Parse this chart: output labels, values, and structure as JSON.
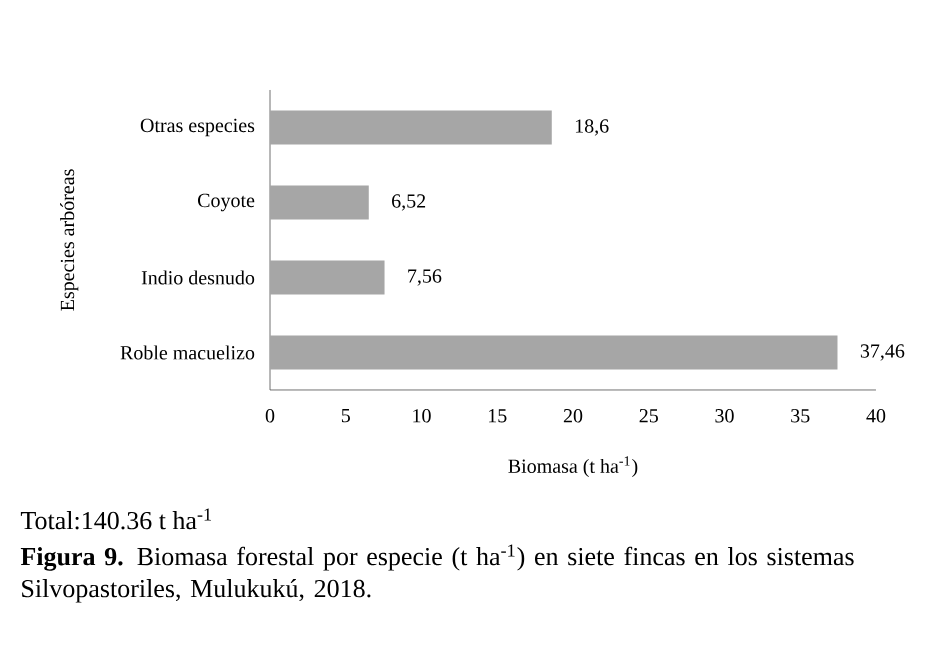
{
  "chart_data": {
    "type": "bar",
    "orientation": "horizontal",
    "categories": [
      "Otras especies",
      "Coyote",
      "Indio desnudo",
      "Roble macuelizo"
    ],
    "values": [
      18.6,
      6.52,
      7.56,
      37.46
    ],
    "value_labels": [
      "18,6",
      "6,52",
      "7,56",
      "37,46"
    ],
    "color": "#a6a6a6",
    "xlim": [
      0,
      40
    ],
    "xticks": [
      0,
      5,
      10,
      15,
      20,
      25,
      30,
      35,
      40
    ],
    "xlabel": "Biomasa (t ha$^{-1}$)",
    "ylabel": "Especies arbóreas",
    "annotations": [
      "Total:140.36 t ha$^{-1}$",
      "**Figura 9.** Biomasa forestal por especie (t ha$^{-1}$) en siete fincas en los sistemas Silvopastoriles,  Mulukukú, 2018."
    ]
  }
}
